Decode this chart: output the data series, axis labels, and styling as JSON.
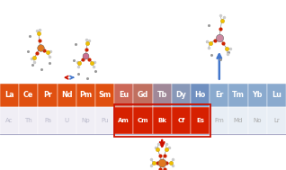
{
  "lanthanides": [
    "La",
    "Ce",
    "Pr",
    "Nd",
    "Pm",
    "Sm",
    "Eu",
    "Gd",
    "Tb",
    "Dy",
    "Ho",
    "Er",
    "Tm",
    "Yb",
    "Lu"
  ],
  "actinides": [
    "Ac",
    "Th",
    "Pa",
    "U",
    "Np",
    "Pu",
    "Am",
    "Cm",
    "Bk",
    "Cf",
    "Es",
    "Fm",
    "Md",
    "No",
    "Lr"
  ],
  "lan_colors": [
    "#E05010",
    "#E05010",
    "#E05010",
    "#E05010",
    "#E05010",
    "#E05010",
    "#CC6858",
    "#C07060",
    "#A08898",
    "#8898B8",
    "#7090C0",
    "#8AAACE",
    "#8AAACE",
    "#8AAACE",
    "#8AAACE"
  ],
  "act_colors": [
    "#F0EEF5",
    "#F0EEF5",
    "#F0EEF5",
    "#F0EEF5",
    "#F0EEF5",
    "#F0EEF5",
    "#D62000",
    "#D62000",
    "#D62000",
    "#D62000",
    "#D62000",
    "#E8EEF5",
    "#E8EEF5",
    "#E8EEF5",
    "#E8EEF5"
  ],
  "act_text_colors": [
    "#BBBBCC",
    "#BBBBCC",
    "#BBBBCC",
    "#BBBBCC",
    "#BBBBCC",
    "#BBBBCC",
    "#FFFFFF",
    "#FFFFFF",
    "#FFFFFF",
    "#FFFFFF",
    "#FFFFFF",
    "#AAAAAA",
    "#AAAAAA",
    "#AAAAAA",
    "#AAAAAA"
  ],
  "lan_text_color": "#FFFFFF",
  "table_bg": "#D8E4F0",
  "arrow_red": "#CC1100",
  "arrow_blue": "#4477CC",
  "fig_bg": "#FFFFFF",
  "mol_yellow": "#F0C000",
  "mol_orange": "#E07820",
  "mol_pink": "#CC7090",
  "mol_red": "#CC2200",
  "mol_gray": "#888888",
  "mol_white": "#CCCCCC"
}
